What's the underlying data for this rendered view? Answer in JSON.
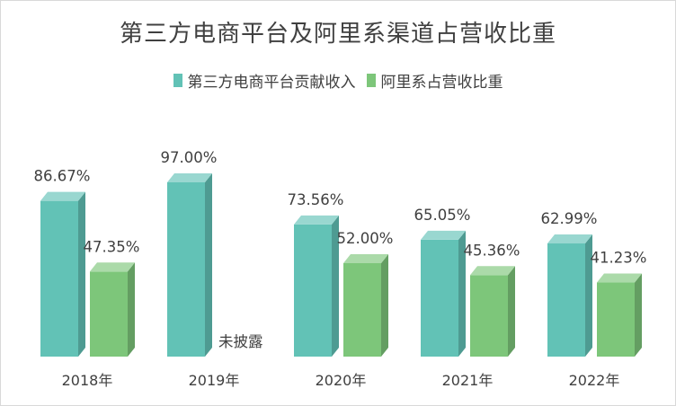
{
  "chart_data": {
    "type": "bar",
    "title": "第三方电商平台及阿里系渠道占营收比重",
    "categories": [
      "2018年",
      "2019年",
      "2020年",
      "2021年",
      "2022年"
    ],
    "series": [
      {
        "name": "第三方电商平台贡献收入",
        "color": "#62c2b6",
        "values": [
          86.67,
          97.0,
          73.56,
          65.05,
          62.99
        ],
        "labels": [
          "86.67%",
          "97.00%",
          "73.56%",
          "65.05%",
          "62.99%"
        ]
      },
      {
        "name": "阿里系占营收比重",
        "color": "#7dc67a",
        "values": [
          47.35,
          null,
          52.0,
          45.36,
          41.23
        ],
        "labels": [
          "47.35%",
          "未披露",
          "52.00%",
          "45.36%",
          "41.23%"
        ]
      }
    ],
    "ylim": [
      0,
      100
    ],
    "grid": false,
    "legend_position": "top"
  }
}
